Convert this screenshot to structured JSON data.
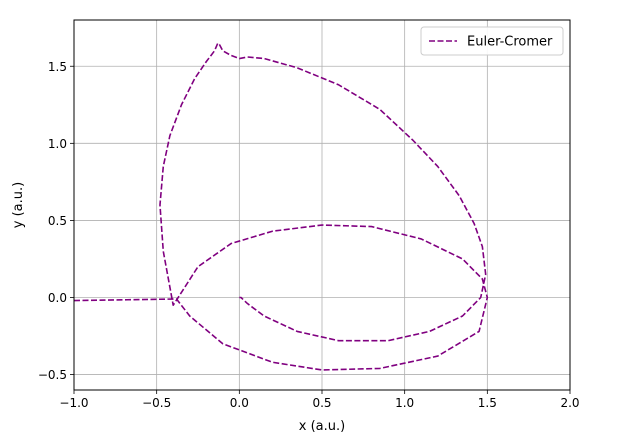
{
  "chart_data": {
    "type": "line",
    "title": "",
    "xlabel": "x (a.u.)",
    "ylabel": "y (a.u.)",
    "xlim": [
      -1.0,
      2.0
    ],
    "ylim": [
      -0.6,
      1.8
    ],
    "xticks": [
      -1.0,
      -0.5,
      0.0,
      0.5,
      1.0,
      1.5,
      2.0
    ],
    "xtick_labels": [
      "−1.0",
      "−0.5",
      "0.0",
      "0.5",
      "1.0",
      "1.5",
      "2.0"
    ],
    "yticks": [
      -0.5,
      0.0,
      0.5,
      1.0,
      1.5
    ],
    "ytick_labels": [
      "−0.5",
      "0.0",
      "0.5",
      "1.0",
      "1.5"
    ],
    "grid": true,
    "legend": {
      "placement": "top-right",
      "entries": [
        "Euler-Cromer"
      ]
    },
    "series": [
      {
        "name": "Euler-Cromer",
        "style": "dashed",
        "color": "#800080",
        "x": [
          -1.0,
          -0.7,
          -0.4,
          -0.38,
          -0.3,
          -0.1,
          0.2,
          0.5,
          0.85,
          1.2,
          1.45,
          1.5,
          1.47,
          1.35,
          1.1,
          0.8,
          0.5,
          0.2,
          -0.05,
          -0.25,
          -0.4,
          -0.46,
          -0.48,
          -0.46,
          -0.42,
          -0.35,
          -0.27,
          -0.2,
          -0.15,
          -0.13,
          -0.12,
          -0.1,
          -0.05,
          0.0,
          0.05,
          0.15,
          0.35,
          0.6,
          0.85,
          1.05,
          1.2,
          1.33,
          1.42,
          1.47,
          1.49,
          1.46,
          1.35,
          1.15,
          0.9,
          0.6,
          0.35,
          0.15,
          0.05,
          0.01,
          0.0
        ],
        "y": [
          -0.02,
          -0.015,
          -0.01,
          -0.01,
          -0.12,
          -0.3,
          -0.42,
          -0.47,
          -0.46,
          -0.38,
          -0.22,
          0.0,
          0.12,
          0.25,
          0.38,
          0.46,
          0.47,
          0.43,
          0.35,
          0.2,
          -0.05,
          0.3,
          0.6,
          0.85,
          1.05,
          1.25,
          1.42,
          1.53,
          1.6,
          1.65,
          1.64,
          1.6,
          1.57,
          1.55,
          1.56,
          1.55,
          1.49,
          1.38,
          1.22,
          1.02,
          0.85,
          0.66,
          0.48,
          0.33,
          0.15,
          0.0,
          -0.12,
          -0.22,
          -0.28,
          -0.28,
          -0.22,
          -0.12,
          -0.04,
          0.0,
          0.0
        ]
      }
    ]
  }
}
